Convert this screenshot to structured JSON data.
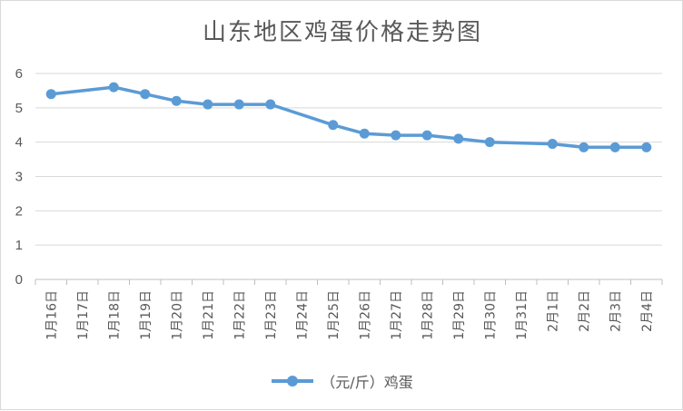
{
  "chart_data": {
    "type": "line",
    "title": "山东地区鸡蛋价格走势图",
    "xlabel": "",
    "ylabel": "",
    "ylim": [
      0,
      6
    ],
    "yticks": [
      "0",
      "1",
      "2",
      "3",
      "4",
      "5",
      "6"
    ],
    "categories": [
      "1月16日",
      "1月17日",
      "1月18日",
      "1月19日",
      "1月20日",
      "1月21日",
      "1月22日",
      "1月23日",
      "1月24日",
      "1月25日",
      "1月26日",
      "1月27日",
      "1月28日",
      "1月29日",
      "1月30日",
      "1月31日",
      "2月1日",
      "2月2日",
      "2月3日",
      "2月4日"
    ],
    "series": [
      {
        "name": "（元/斤）鸡蛋",
        "color": "#5b9bd5",
        "values": [
          5.4,
          null,
          5.6,
          5.4,
          5.2,
          5.1,
          5.1,
          5.1,
          null,
          4.5,
          4.25,
          4.2,
          4.2,
          4.1,
          4.0,
          null,
          3.95,
          3.85,
          3.85,
          3.85
        ]
      }
    ],
    "grid": true,
    "legend": "bottom"
  }
}
